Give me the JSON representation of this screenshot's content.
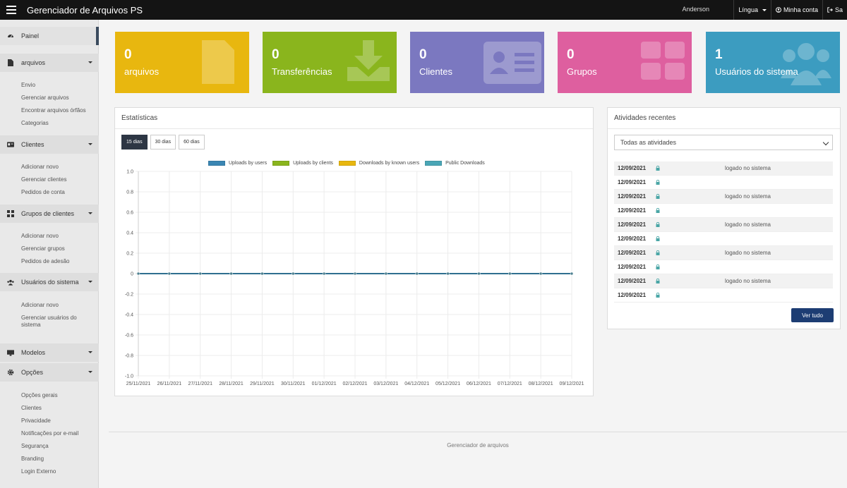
{
  "header": {
    "title": "Gerenciador de Arquivos PS",
    "user": "Anderson",
    "language": "Língua",
    "account": "Minha conta",
    "logout": "Sa"
  },
  "sidebar": {
    "dashboard": "Painel",
    "files": {
      "label": "arquivos",
      "items": [
        "Envio",
        "Gerenciar arquivos",
        "Encontrar arquivos órfãos",
        "Categorias"
      ]
    },
    "clients": {
      "label": "Clientes",
      "items": [
        "Adicionar novo",
        "Gerenciar clientes",
        "Pedidos de conta"
      ]
    },
    "groups": {
      "label": "Grupos de clientes",
      "items": [
        "Adicionar novo",
        "Gerenciar grupos",
        "Pedidos de adesão"
      ]
    },
    "users": {
      "label": "Usuários do sistema",
      "items": [
        "Adicionar novo",
        "Gerenciar usuários do",
        "sistema"
      ]
    },
    "templates": {
      "label": "Modelos"
    },
    "options": {
      "label": "Opções",
      "items": [
        "Opções gerais",
        "Clientes",
        "Privacidade",
        "Notificações por e-mail",
        "Segurança",
        "Branding",
        "Login Externo"
      ]
    }
  },
  "cards": [
    {
      "value": "0",
      "label": "arquivos",
      "color": "#e8b70f"
    },
    {
      "value": "0",
      "label": "Transferências",
      "color": "#8ab51d"
    },
    {
      "value": "0",
      "label": "Clientes",
      "color": "#7b78c0"
    },
    {
      "value": "0",
      "label": "Grupos",
      "color": "#de5f9f"
    },
    {
      "value": "1",
      "label": "Usuários do sistema",
      "color": "#3c9cc0"
    }
  ],
  "stats": {
    "title": "Estatísticas",
    "ranges": [
      "15 dias",
      "30 dias",
      "60 dias"
    ],
    "legend": [
      {
        "name": "Uploads by users",
        "color": "#3a86b3"
      },
      {
        "name": "Uploads by clients",
        "color": "#8ab51d"
      },
      {
        "name": "Downloads by known users",
        "color": "#e8b70f"
      },
      {
        "name": "Public Downloads",
        "color": "#4aa6b6"
      }
    ]
  },
  "chart_data": {
    "type": "line",
    "x": [
      "25/11/2021",
      "26/11/2021",
      "27/11/2021",
      "28/11/2021",
      "29/11/2021",
      "30/11/2021",
      "01/12/2021",
      "02/12/2021",
      "03/12/2021",
      "04/12/2021",
      "05/12/2021",
      "06/12/2021",
      "07/12/2021",
      "08/12/2021",
      "09/12/2021"
    ],
    "series": [
      {
        "name": "Uploads by users",
        "values": [
          0,
          0,
          0,
          0,
          0,
          0,
          0,
          0,
          0,
          0,
          0,
          0,
          0,
          0,
          0
        ]
      },
      {
        "name": "Uploads by clients",
        "values": [
          0,
          0,
          0,
          0,
          0,
          0,
          0,
          0,
          0,
          0,
          0,
          0,
          0,
          0,
          0
        ]
      },
      {
        "name": "Downloads by known users",
        "values": [
          0,
          0,
          0,
          0,
          0,
          0,
          0,
          0,
          0,
          0,
          0,
          0,
          0,
          0,
          0
        ]
      },
      {
        "name": "Public Downloads",
        "values": [
          0,
          0,
          0,
          0,
          0,
          0,
          0,
          0,
          0,
          0,
          0,
          0,
          0,
          0,
          0
        ]
      }
    ],
    "yticks": [
      "1.0",
      "0.8",
      "0.6",
      "0.4",
      "0.2",
      "0",
      "-0.2",
      "-0.4",
      "-0.6",
      "-0.8",
      "-1.0"
    ],
    "ylim": [
      -1,
      1
    ],
    "grid": true,
    "legend_position": "top"
  },
  "activities": {
    "title": "Atividades recentes",
    "filter": "Todas as atividades",
    "rows": [
      {
        "date": "12/09/2021",
        "text": "logado no sistema"
      },
      {
        "date": "12/09/2021",
        "text": ""
      },
      {
        "date": "12/09/2021",
        "text": "logado no sistema"
      },
      {
        "date": "12/09/2021",
        "text": ""
      },
      {
        "date": "12/09/2021",
        "text": "logado no sistema"
      },
      {
        "date": "12/09/2021",
        "text": ""
      },
      {
        "date": "12/09/2021",
        "text": "logado no sistema"
      },
      {
        "date": "12/09/2021",
        "text": ""
      },
      {
        "date": "12/09/2021",
        "text": "logado no sistema"
      },
      {
        "date": "12/09/2021",
        "text": ""
      }
    ],
    "view_all": "Ver tudo"
  },
  "footer": {
    "text": "Gerenciador de arquivos"
  }
}
